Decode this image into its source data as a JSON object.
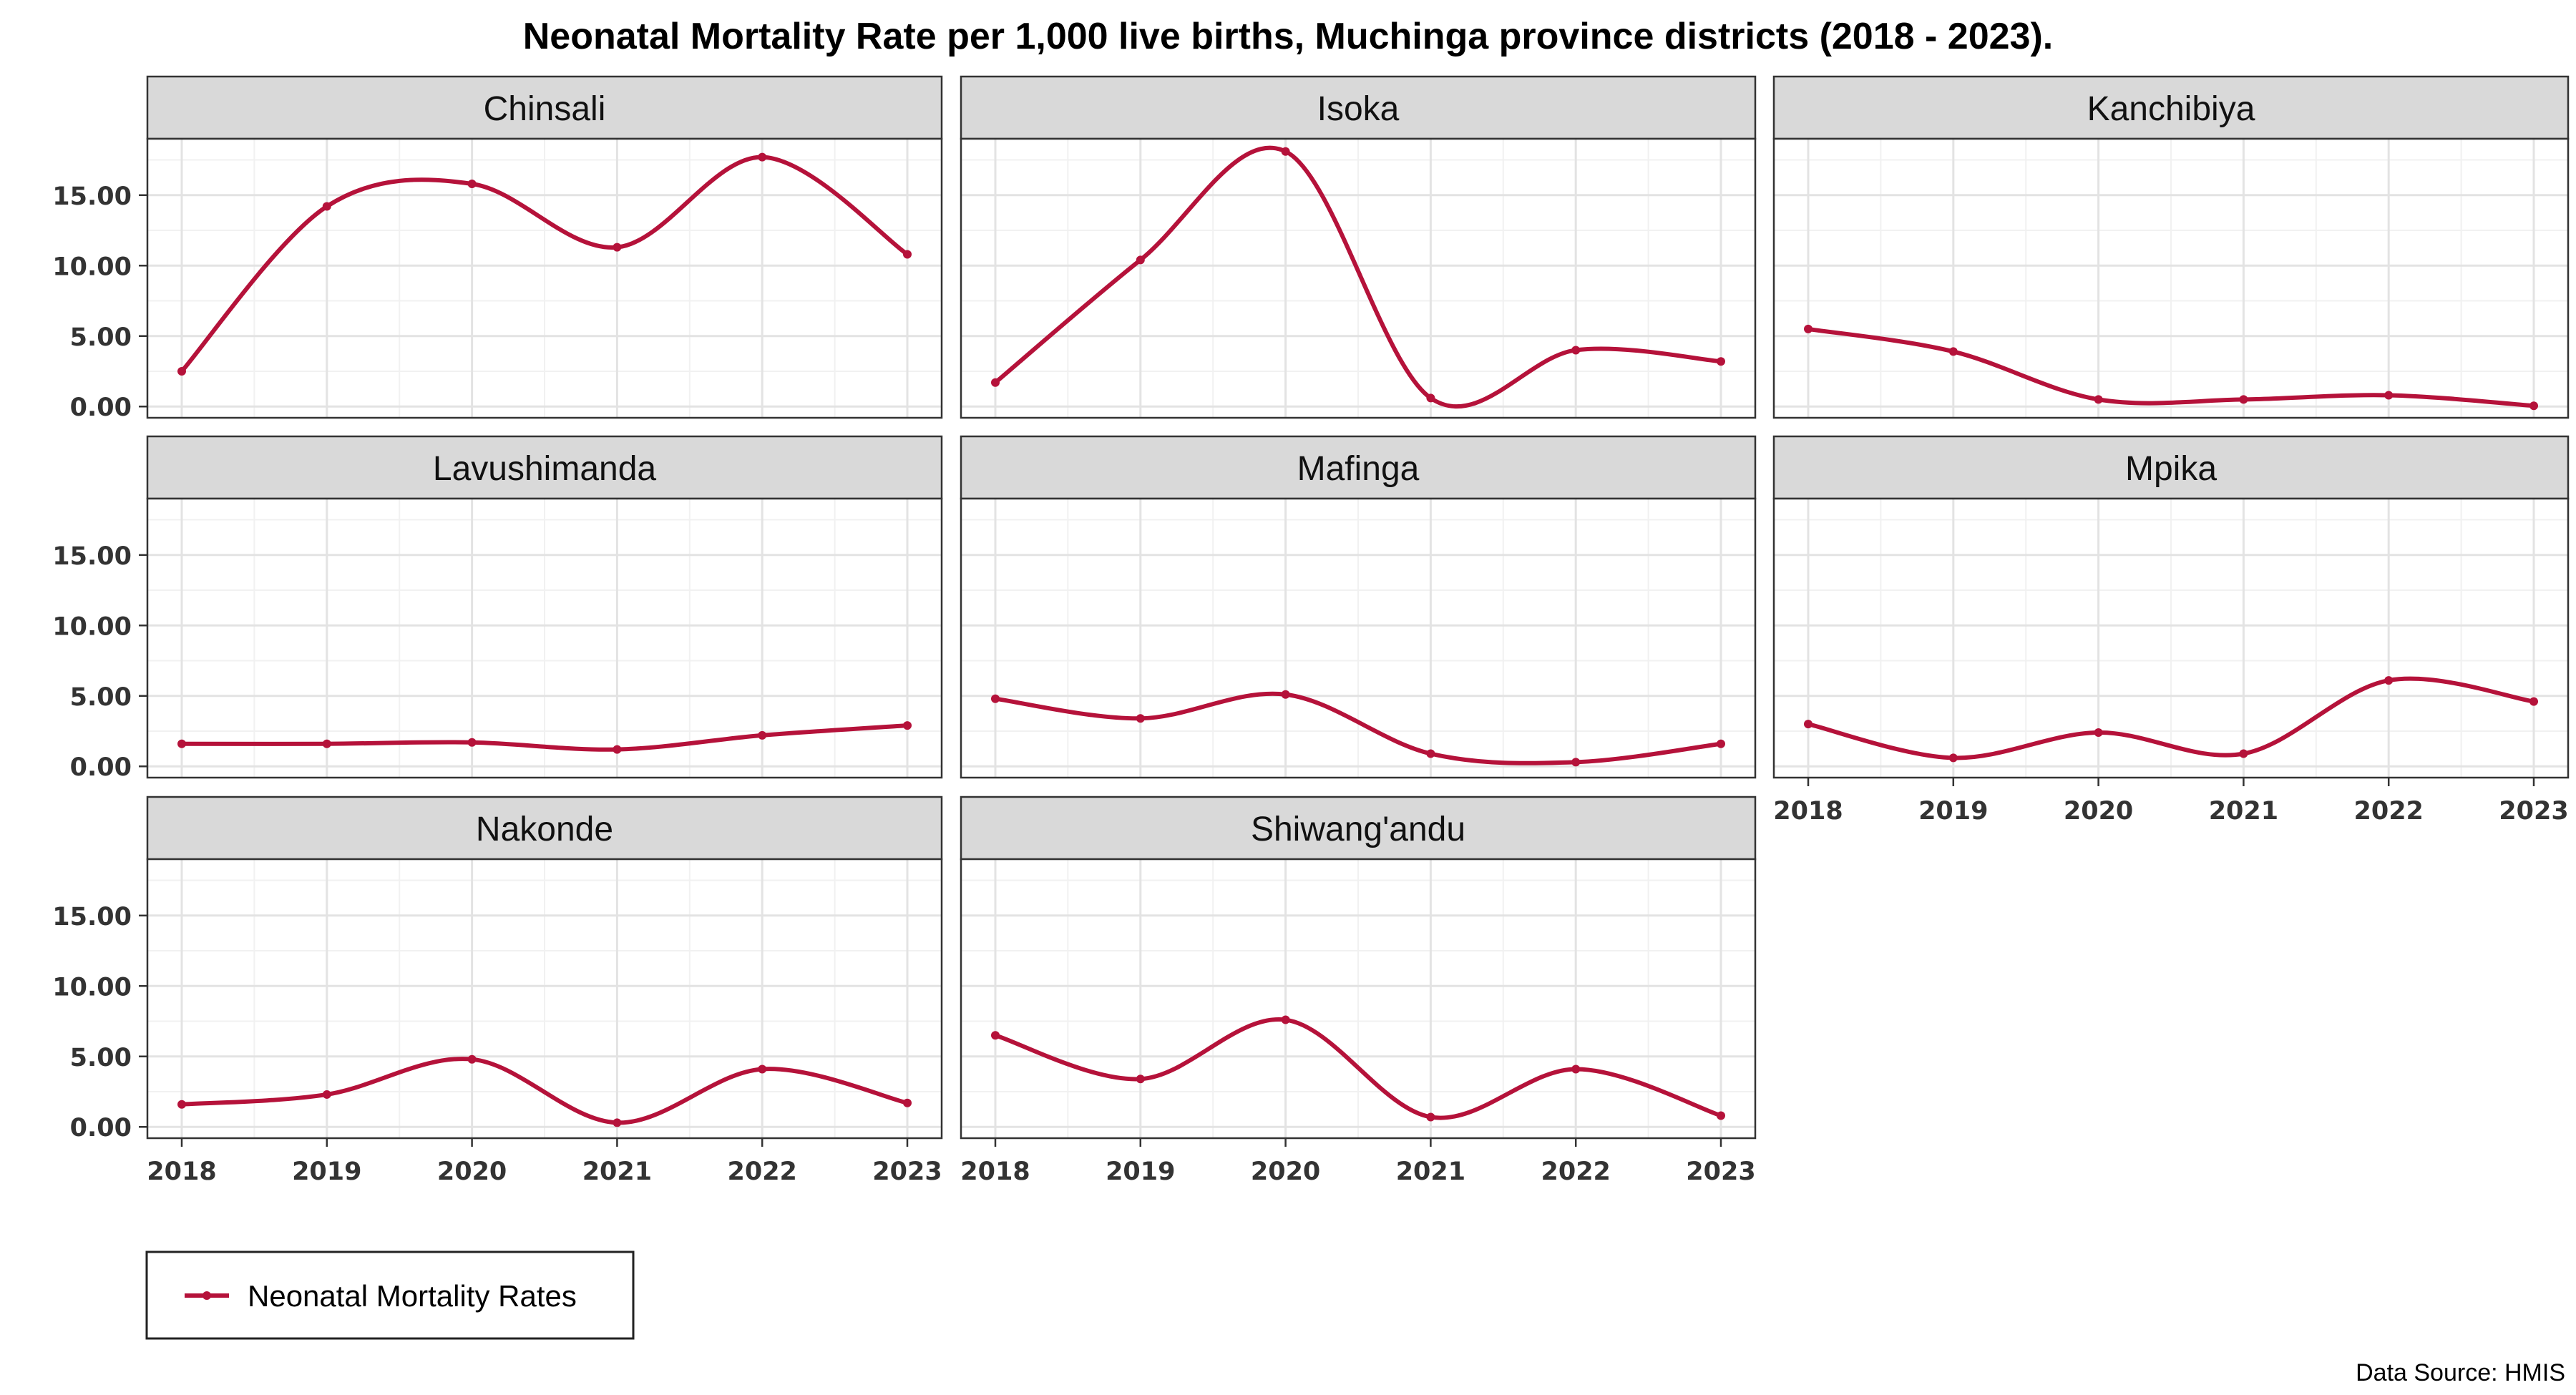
{
  "chart_data": {
    "type": "line",
    "title": "Neonatal Mortality Rate per 1,000 live births, Muchinga province districts (2018 - 2023).",
    "x": [
      "2018",
      "2019",
      "2020",
      "2021",
      "2022",
      "2023"
    ],
    "y_ticks": [
      "0.00",
      "5.00",
      "10.00",
      "15.00"
    ],
    "ylim": [
      -0.8,
      19.0
    ],
    "grid": true,
    "legend": {
      "position": "bottom-left",
      "entries": [
        "Neonatal Mortality Rates"
      ]
    },
    "caption": "Data Source: HMIS",
    "line_color": "#b5123a",
    "strip_color": "#d9d9d9",
    "panels": [
      {
        "name": "Chinsali",
        "values": [
          2.5,
          14.2,
          15.8,
          11.3,
          17.7,
          10.8
        ]
      },
      {
        "name": "Isoka",
        "values": [
          1.7,
          10.4,
          18.1,
          0.6,
          4.0,
          3.2
        ]
      },
      {
        "name": "Kanchibiya",
        "values": [
          5.5,
          3.9,
          0.5,
          0.5,
          0.8,
          0.05
        ]
      },
      {
        "name": "Lavushimanda",
        "values": [
          1.6,
          1.6,
          1.7,
          1.2,
          2.2,
          2.9
        ]
      },
      {
        "name": "Mafinga",
        "values": [
          4.8,
          3.4,
          5.1,
          0.9,
          0.3,
          1.6
        ]
      },
      {
        "name": "Mpika",
        "values": [
          3.0,
          0.6,
          2.4,
          0.9,
          6.1,
          4.6
        ]
      },
      {
        "name": "Nakonde",
        "values": [
          1.6,
          2.3,
          4.8,
          0.3,
          4.1,
          1.7
        ]
      },
      {
        "name": "Shiwang'andu",
        "values": [
          6.5,
          3.4,
          7.6,
          0.7,
          4.1,
          0.8
        ]
      }
    ]
  }
}
